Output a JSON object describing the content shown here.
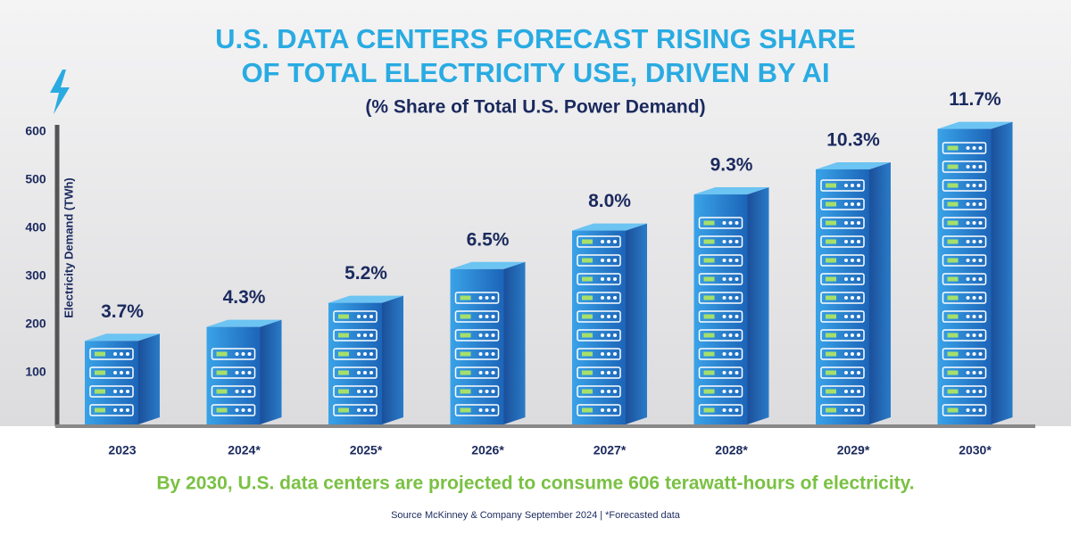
{
  "chart_data": {
    "type": "bar",
    "title": [
      "U.S. DATA CENTERS FORECAST RISING SHARE",
      "OF TOTAL ELECTRICITY USE, DRIVEN BY AI"
    ],
    "subtitle": "(% Share of Total U.S. Power Demand)",
    "y_label": "Electricity Demand (TWh)",
    "categories": [
      "2023",
      "2024*",
      "2025*",
      "2026*",
      "2027*",
      "2028*",
      "2029*",
      "2030*"
    ],
    "values": [
      166,
      195,
      245,
      315,
      395,
      470,
      522,
      606
    ],
    "color": "#2a86d4",
    "share": {
      "values": [
        3.7,
        4.3,
        5.2,
        6.5,
        8.0,
        9.3,
        10.3,
        11.7
      ],
      "value_labels": [
        "3.7%",
        "4.3%",
        "5.2%",
        "6.5%",
        "8.0%",
        "9.3%",
        "10.3%",
        "11.7%"
      ]
    },
    "ylim": [
      0,
      620
    ],
    "yticks": [
      100,
      200,
      300,
      400,
      500,
      600
    ],
    "grid": false,
    "headline": "By 2030, U.S. data centers are projected to consume 606 terawatt-hours of electricity.",
    "source": "Source McKinney & Company September 2024 | *Forecasted data"
  }
}
